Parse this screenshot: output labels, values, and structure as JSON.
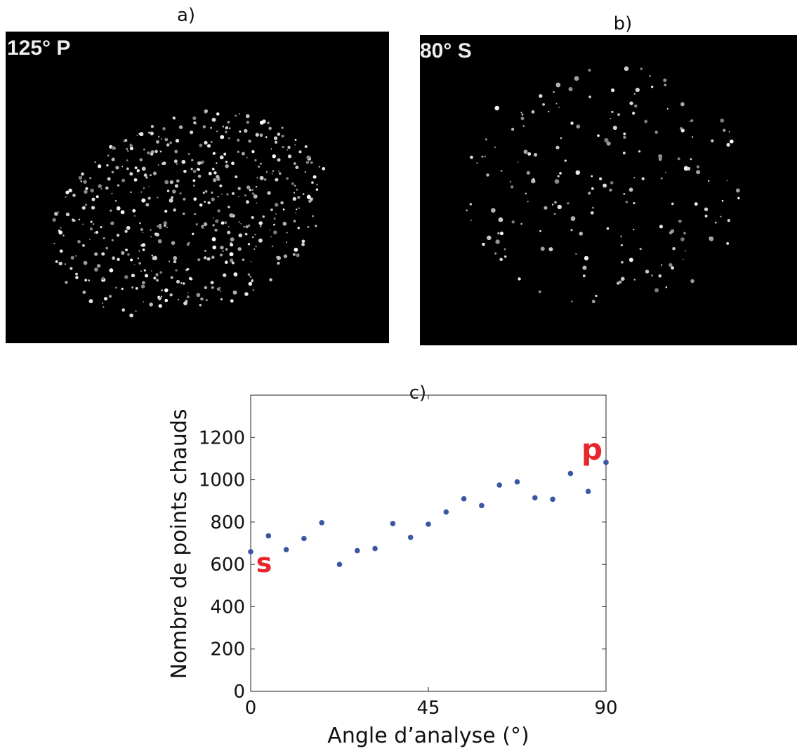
{
  "panels": [
    {
      "label": "a)",
      "caption": "125° P"
    },
    {
      "label": "b)",
      "caption": "80° S"
    }
  ],
  "chart_data": {
    "type": "scatter",
    "title": "c)",
    "x_label": "Angle d’analyse (°)",
    "y_label": "Nombre de points chauds",
    "annotations": [
      "s",
      "p"
    ],
    "series": [
      {
        "color": "#3b56a3",
        "x": [
          0,
          4.5,
          9,
          13.5,
          18,
          22.5,
          27,
          31.5,
          36,
          40.5,
          45,
          49.5,
          54,
          58.5,
          63,
          67.5,
          72,
          76.5,
          81,
          85.5,
          90
        ],
        "values": [
          660,
          735,
          670,
          722,
          797,
          600,
          665,
          675,
          793,
          728,
          790,
          848,
          910,
          878,
          975,
          990,
          915,
          908,
          1030,
          945,
          1082
        ]
      }
    ],
    "xlim": [
      0,
      90
    ],
    "xticks": [
      0,
      45,
      90
    ],
    "ylim": [
      0,
      1400
    ],
    "yticks": [
      0,
      200,
      400,
      600,
      800,
      1000,
      1200
    ],
    "grid": false
  }
}
